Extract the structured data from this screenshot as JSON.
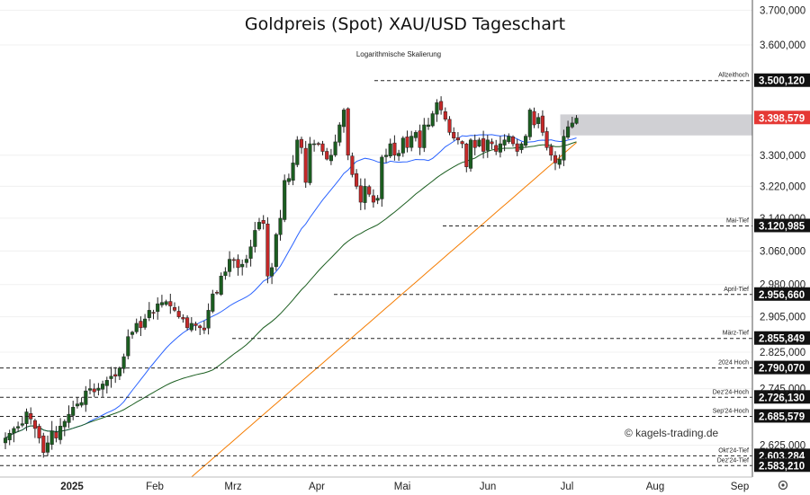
{
  "chart_data": {
    "type": "candlestick",
    "title": "Goldpreis (Spot) XAU/USD Tageschart",
    "subtitle": "Logarithmische Skalierung",
    "y_scale": "log",
    "ylim": [
      2560,
      3730
    ],
    "y_ticks": [
      {
        "value": 3700000,
        "label": "3.700,000"
      },
      {
        "value": 3600000,
        "label": "3.600,000"
      },
      {
        "value": 3300000,
        "label": "3.300,000"
      },
      {
        "value": 3220000,
        "label": "3.220,000"
      },
      {
        "value": 3140000,
        "label": "3.140,000"
      },
      {
        "value": 3060000,
        "label": "3.060,000"
      },
      {
        "value": 2980000,
        "label": "2.980,000"
      },
      {
        "value": 2905000,
        "label": "2.905,000"
      },
      {
        "value": 2825000,
        "label": "2.825,000"
      },
      {
        "value": 2745000,
        "label": "2.745,000"
      },
      {
        "value": 2625000,
        "label": "2.625,000"
      }
    ],
    "x_labels": [
      {
        "label": "2025",
        "bold": true
      },
      {
        "label": "Feb",
        "bold": false
      },
      {
        "label": "Mrz",
        "bold": false
      },
      {
        "label": "Apr",
        "bold": false
      },
      {
        "label": "Mai",
        "bold": false
      },
      {
        "label": "Jun",
        "bold": false
      },
      {
        "label": "Jul",
        "bold": false
      },
      {
        "label": "Aug",
        "bold": false
      },
      {
        "label": "Sep",
        "bold": false
      }
    ],
    "levels": [
      {
        "name": "Allzeithoch",
        "label": "3.500,120",
        "value": 3500.12,
        "color": "#111111"
      },
      {
        "name": "",
        "label": "3.398,579",
        "value": 3398.579,
        "color": "#e53935"
      },
      {
        "name": "Mai-Tief",
        "label": "3.120,985",
        "value": 3120.985,
        "color": "#111111"
      },
      {
        "name": "April-Tief",
        "label": "2.956,660",
        "value": 2956.66,
        "color": "#111111"
      },
      {
        "name": "März-Tief",
        "label": "2.855,849",
        "value": 2855.849,
        "color": "#111111"
      },
      {
        "name": "2024 Hoch",
        "label": "2.790,070",
        "value": 2790.07,
        "color": "#111111"
      },
      {
        "name": "Dez'24-Hoch",
        "label": "2.726,130",
        "value": 2726.13,
        "color": "#111111"
      },
      {
        "name": "Sep'24-Hoch",
        "label": "2.685,579",
        "value": 2685.579,
        "color": "#111111"
      },
      {
        "name": "",
        "label": "2.603,284",
        "value": 2603.284,
        "color": "#111111"
      },
      {
        "name": "Okt'24-Tief",
        "label": "",
        "value": 2603.284,
        "color": "#111111"
      },
      {
        "name": "Dez'24-Tief",
        "label": "2.583,210",
        "value": 2583.21,
        "color": "#111111"
      }
    ],
    "close_path": [
      2640,
      2650,
      2660,
      2664,
      2670,
      2695,
      2680,
      2660,
      2640,
      2610,
      2630,
      2655,
      2640,
      2665,
      2675,
      2690,
      2705,
      2712,
      2715,
      2740,
      2745,
      2738,
      2746,
      2755,
      2763,
      2772,
      2772,
      2790,
      2815,
      2860,
      2870,
      2890,
      2880,
      2900,
      2920,
      2915,
      2935,
      2938,
      2940,
      2930,
      2920,
      2905,
      2900,
      2880,
      2890,
      2885,
      2880,
      2875,
      2920,
      2958,
      2960,
      3000,
      3010,
      3040,
      3038,
      3020,
      3028,
      3040,
      3070,
      3110,
      3130,
      3127,
      3000,
      3020,
      3100,
      3140,
      3235,
      3240,
      3280,
      3340,
      3320,
      3230,
      3330,
      3330,
      3330,
      3310,
      3290,
      3300,
      3335,
      3380,
      3420,
      3300,
      3250,
      3220,
      3180,
      3220,
      3200,
      3180,
      3190,
      3295,
      3300,
      3330,
      3300,
      3305,
      3345,
      3320,
      3350,
      3360,
      3320,
      3380,
      3380,
      3410,
      3440,
      3420,
      3395,
      3360,
      3345,
      3340,
      3330,
      3270,
      3340,
      3320,
      3340,
      3310,
      3340,
      3330,
      3310,
      3330,
      3340,
      3350,
      3330,
      3310,
      3330,
      3350,
      3420,
      3380,
      3400,
      3360,
      3320,
      3300,
      3280,
      3290,
      3350,
      3375,
      3385,
      3398
    ],
    "ma_fast_label": "",
    "ma_mid_label": "",
    "ma_slow_label": ""
  },
  "annotations": {
    "watermark": "© kagels-trading.de"
  },
  "colors": {
    "up": "#1b5e20",
    "down": "#c62828",
    "ma_fast": "#2962ff",
    "ma_mid": "#1b5e20",
    "ma_slow": "#f57c00",
    "resistance_zone": "#b0b0b8"
  },
  "icons": {
    "settings": "settings-gear-icon"
  }
}
